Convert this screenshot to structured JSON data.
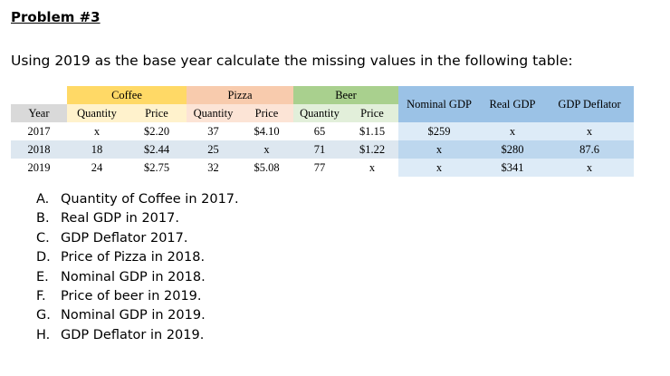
{
  "heading": "Problem #3",
  "instruction": "Using 2019 as the base year calculate the missing values in the following table:",
  "table": {
    "group_headers": {
      "coffee": "Coffee",
      "pizza": "Pizza",
      "beer": "Beer"
    },
    "summary_headers": {
      "nominal_gdp": "Nominal GDP",
      "real_gdp": "Real GDP",
      "gdp_deflator": "GDP Deflator"
    },
    "sub_headers": {
      "year": "Year",
      "coffee_quantity": "Quantity",
      "coffee_price": "Price",
      "pizza_quantity": "Quantity",
      "pizza_price": "Price",
      "beer_quantity": "Quantity",
      "beer_price": "Price"
    },
    "rows": [
      {
        "year": "2017",
        "coffee_quantity": "x",
        "coffee_price": "$2.20",
        "pizza_quantity": "37",
        "pizza_price": "$4.10",
        "beer_quantity": "65",
        "beer_price": "$1.15",
        "nominal_gdp": "$259",
        "real_gdp": "x",
        "gdp_deflator": "x"
      },
      {
        "year": "2018",
        "coffee_quantity": "18",
        "coffee_price": "$2.44",
        "pizza_quantity": "25",
        "pizza_price": "x",
        "beer_quantity": "71",
        "beer_price": "$1.22",
        "nominal_gdp": "x",
        "real_gdp": "$280",
        "gdp_deflator": "87.6"
      },
      {
        "year": "2019",
        "coffee_quantity": "24",
        "coffee_price": "$2.75",
        "pizza_quantity": "32",
        "pizza_price": "$5.08",
        "beer_quantity": "77",
        "beer_price": "x",
        "nominal_gdp": "x",
        "real_gdp": "$341",
        "gdp_deflator": "x"
      }
    ]
  },
  "questions": [
    {
      "letter": "A.",
      "text": "Quantity of Coffee in 2017."
    },
    {
      "letter": "B.",
      "text": "Real GDP in 2017."
    },
    {
      "letter": "C.",
      "text": "GDP Deflator 2017."
    },
    {
      "letter": "D.",
      "text": "Price of Pizza in 2018."
    },
    {
      "letter": "E.",
      "text": "Nominal GDP in 2018."
    },
    {
      "letter": "F.",
      "text": "Price of beer in 2019."
    },
    {
      "letter": "G.",
      "text": "Nominal GDP in 2019."
    },
    {
      "letter": "H.",
      "text": "GDP Deflator in 2019."
    }
  ],
  "colors": {
    "coffee_header": "#ffd966",
    "pizza_header": "#f8cbad",
    "beer_header": "#a9d08e",
    "summary_header": "#9bc2e6",
    "band_row": "#dde7f0"
  }
}
